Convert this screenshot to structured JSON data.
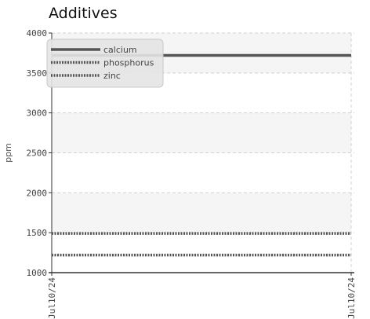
{
  "chart_data": {
    "type": "line",
    "title": "Additives",
    "xlabel": "",
    "ylabel": "ppm",
    "ylim": [
      1000,
      4000
    ],
    "yticks": [
      1000,
      1500,
      2000,
      2500,
      3000,
      3500,
      4000
    ],
    "x": [
      "Jul10/24",
      "Jul10/24"
    ],
    "series": [
      {
        "name": "calcium",
        "values": [
          3720,
          3720
        ],
        "style": "solid"
      },
      {
        "name": "phosphorus",
        "values": [
          1220,
          1220
        ],
        "style": "dotted"
      },
      {
        "name": "zinc",
        "values": [
          1490,
          1490
        ],
        "style": "dotted"
      }
    ],
    "grid": true,
    "legend": "top-left"
  }
}
